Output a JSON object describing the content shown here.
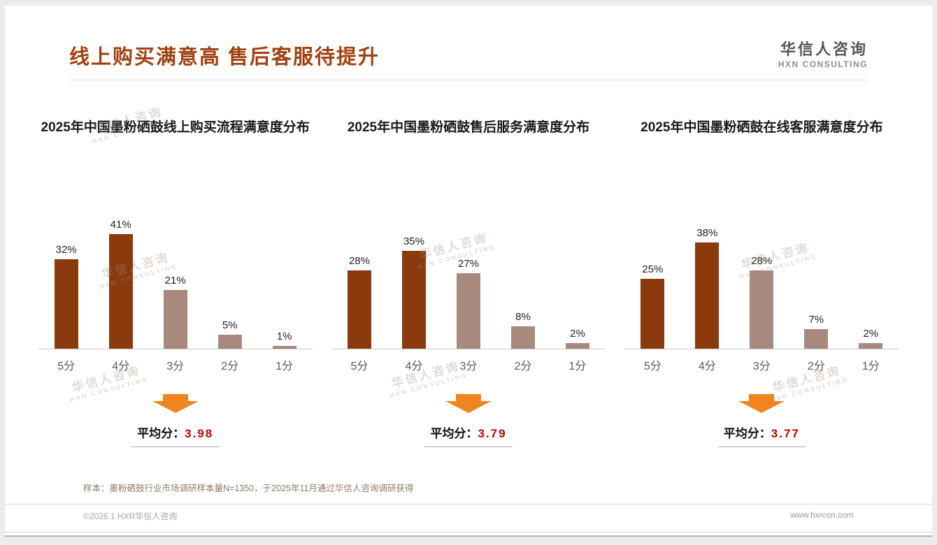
{
  "page": {
    "title": "线上购买满意高 售后客服待提升",
    "logo": {
      "name": "华信人咨询",
      "sub": "HXN CONSULTING"
    },
    "note": "样本：墨粉硒鼓行业市场调研样本量N=1350，于2025年11月通过华信人咨询调研获得",
    "copyright": "©2026.1 HXR华信人咨询",
    "website": "www.hxrcon.com",
    "watermark": {
      "line1": "华信人咨询",
      "line2": "HXN CONSULTING"
    }
  },
  "colors": {
    "title": "#A0410F",
    "bar_dark": "#8B3A0E",
    "bar_light": "#A8897E",
    "arrow": "#F0841F",
    "average_value": "#C00000"
  },
  "chart_data": [
    {
      "type": "bar",
      "title": "2025年中国墨粉硒鼓线上购买流程满意度分布",
      "categories": [
        "5分",
        "4分",
        "3分",
        "2分",
        "1分"
      ],
      "values": [
        32,
        41,
        21,
        5,
        1
      ],
      "unit": "%",
      "ylim": [
        0,
        45
      ],
      "bar_colors": [
        "dark",
        "dark",
        "light",
        "light",
        "light"
      ],
      "average_label": "平均分：",
      "average": "3.98"
    },
    {
      "type": "bar",
      "title": "2025年中国墨粉硒鼓售后服务满意度分布",
      "categories": [
        "5分",
        "4分",
        "3分",
        "2分",
        "1分"
      ],
      "values": [
        28,
        35,
        27,
        8,
        2
      ],
      "unit": "%",
      "ylim": [
        0,
        45
      ],
      "bar_colors": [
        "dark",
        "dark",
        "light",
        "light",
        "light"
      ],
      "average_label": "平均分：",
      "average": "3.79"
    },
    {
      "type": "bar",
      "title": "2025年中国墨粉硒鼓在线客服满意度分布",
      "categories": [
        "5分",
        "4分",
        "3分",
        "2分",
        "1分"
      ],
      "values": [
        25,
        38,
        28,
        7,
        2
      ],
      "unit": "%",
      "ylim": [
        0,
        45
      ],
      "bar_colors": [
        "dark",
        "dark",
        "light",
        "light",
        "light"
      ],
      "average_label": "平均分：",
      "average": "3.77"
    }
  ]
}
